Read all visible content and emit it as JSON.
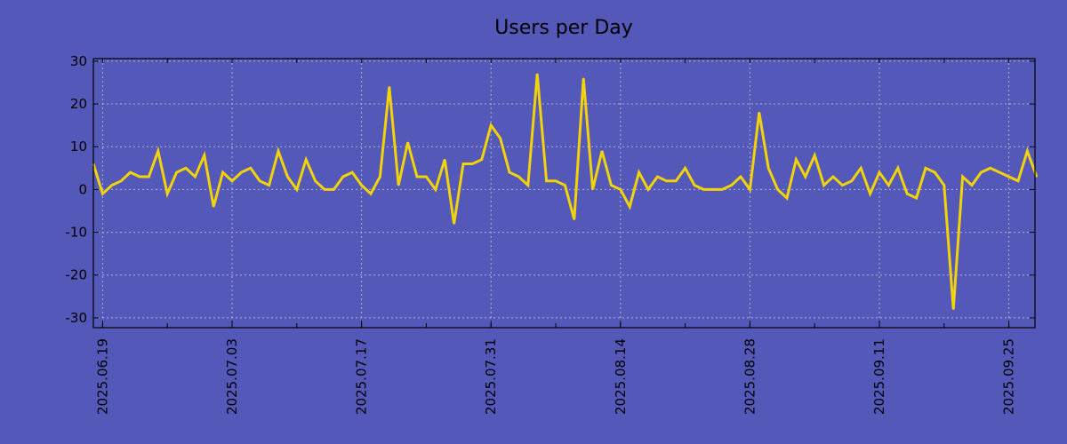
{
  "chart_data": {
    "type": "line",
    "title": "Users per Day",
    "xlabel": "",
    "ylabel": "",
    "start_date": "2025-06-18",
    "x_tick_labels": [
      "2025.06.19",
      "2025.07.03",
      "2025.07.17",
      "2025.07.31",
      "2025.08.14",
      "2025.08.28",
      "2025.09.11",
      "2025.09.25"
    ],
    "x_tick_day_offsets": [
      1,
      15,
      29,
      43,
      57,
      71,
      85,
      99
    ],
    "y_ticks": [
      30,
      20,
      10,
      0,
      -10,
      -20,
      -30
    ],
    "y_tick_labels": [
      "30",
      "20",
      "10",
      "0",
      "-10",
      "-20",
      "-30"
    ],
    "ylim": [
      -32.3,
      30.6
    ],
    "grid": true,
    "colors": {
      "background": "#5459b9",
      "line": "#f2d20a",
      "grid": "#b0b0c8"
    },
    "series": [
      {
        "name": "Users per Day",
        "values": [
          6,
          -1,
          1,
          2,
          4,
          3,
          3,
          9,
          -1,
          4,
          5,
          3,
          8,
          -4,
          4,
          2,
          4,
          5,
          2,
          1,
          9,
          3,
          0,
          7,
          2,
          0,
          0,
          3,
          4,
          1,
          -1,
          3,
          24,
          1,
          11,
          3,
          3,
          0,
          7,
          -8,
          6,
          6,
          7,
          15,
          12,
          4,
          3,
          1,
          27,
          2,
          2,
          1,
          -7,
          26,
          0,
          9,
          1,
          0,
          -4,
          4,
          0,
          3,
          2,
          2,
          5,
          1,
          0,
          0,
          0,
          1,
          3,
          0,
          18,
          5,
          0,
          -2,
          7,
          3,
          8,
          1,
          3,
          1,
          2,
          5,
          -1,
          4,
          1,
          5,
          -1,
          -2,
          5,
          4,
          1,
          -28,
          3,
          1,
          4,
          5,
          4,
          3,
          2,
          9,
          3
        ]
      }
    ]
  }
}
